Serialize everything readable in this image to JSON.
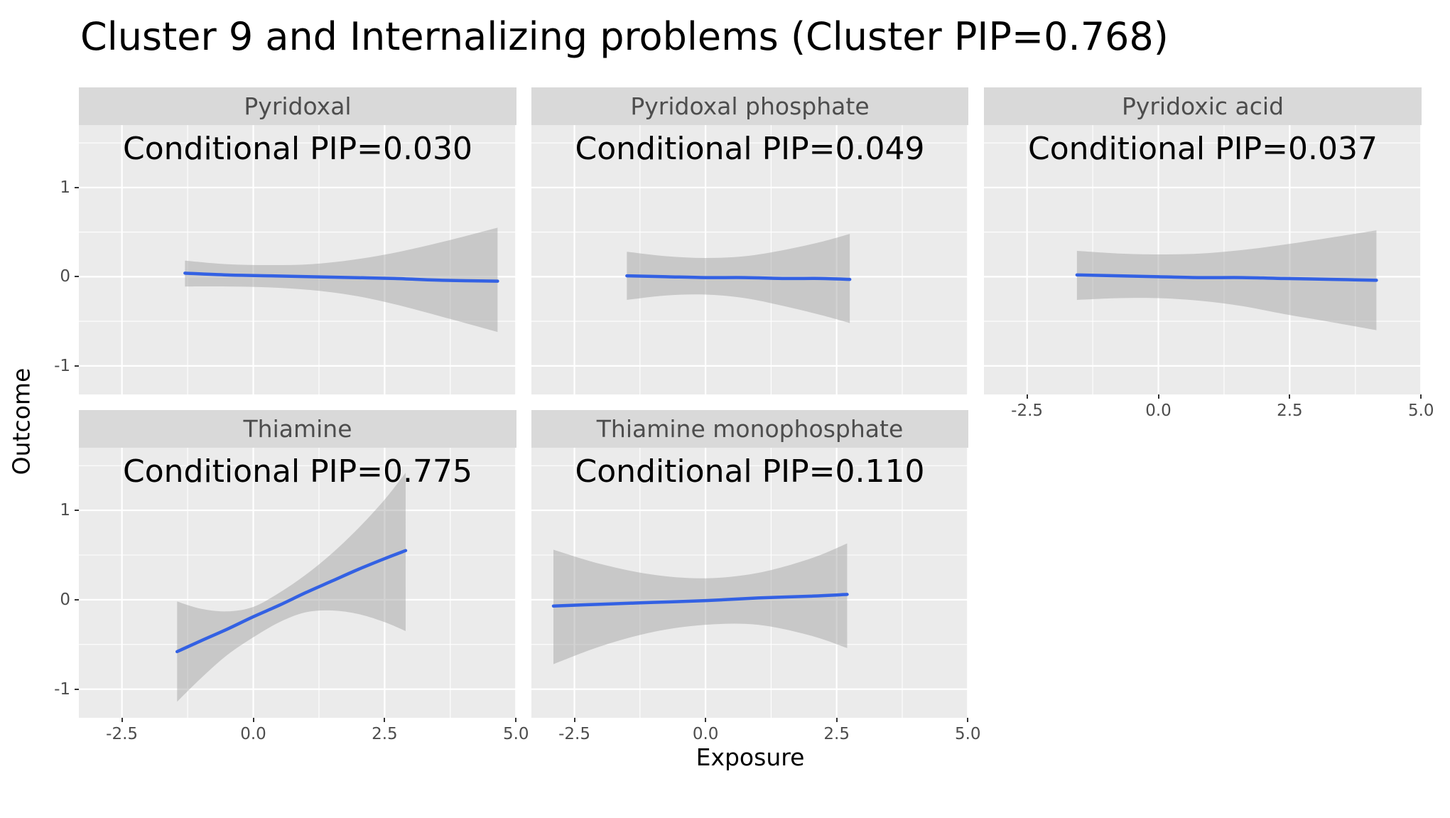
{
  "title": "Cluster 9 and Internalizing problems (Cluster PIP=0.768)",
  "axes": {
    "x_label": "Exposure",
    "y_label": "Outcome"
  },
  "chart_data": {
    "type": "line",
    "title": "Cluster 9 and Internalizing problems (Cluster PIP=0.768)",
    "xlabel": "Exposure",
    "ylabel": "Outcome",
    "xlim": [
      -3.32,
      5.01
    ],
    "ylim": [
      -1.32,
      1.7
    ],
    "x_ticks": {
      "values": [
        -2.5,
        0,
        2.5,
        5
      ],
      "labels": [
        "-2.5",
        "0.0",
        "2.5",
        "5.0"
      ]
    },
    "y_ticks": {
      "values": [
        -1,
        0,
        1
      ],
      "labels": [
        "-1",
        "0",
        "1"
      ]
    },
    "x_minor": [
      -1.25,
      1.25,
      3.75
    ],
    "y_minor": [
      -0.5,
      0.5,
      1.5
    ],
    "style": {
      "panel_bg": "#EBEBEB",
      "strip_bg": "#D9D9D9",
      "grid_color": "#FFFFFF",
      "line_color": "#3361E3",
      "ribbon_color": "#9E9E9E",
      "ribbon_opacity": 0.45
    },
    "panels": [
      {
        "name": "Pyridoxal",
        "pip_label": "Conditional PIP=0.030",
        "row": 0,
        "col": 0,
        "show_x_axis": false,
        "show_y_axis": true,
        "line": {
          "x": [
            -1.3,
            -0.5,
            0.3,
            1.1,
            1.9,
            2.7,
            3.6,
            4.65
          ],
          "y": [
            0.04,
            0.02,
            0.01,
            0.0,
            -0.01,
            -0.02,
            -0.04,
            -0.05
          ]
        },
        "ribbon": {
          "x": [
            -1.3,
            -0.5,
            0.3,
            1.1,
            1.9,
            2.7,
            3.6,
            4.65
          ],
          "upper": [
            0.18,
            0.14,
            0.13,
            0.14,
            0.19,
            0.27,
            0.39,
            0.55
          ],
          "lower": [
            -0.11,
            -0.11,
            -0.12,
            -0.15,
            -0.21,
            -0.31,
            -0.45,
            -0.62
          ]
        }
      },
      {
        "name": "Pyridoxal phosphate",
        "pip_label": "Conditional PIP=0.049",
        "row": 0,
        "col": 1,
        "show_x_axis": false,
        "show_y_axis": false,
        "line": {
          "x": [
            -1.5,
            -0.75,
            0.0,
            0.75,
            1.5,
            2.2,
            2.75
          ],
          "y": [
            0.01,
            0.0,
            -0.01,
            -0.01,
            -0.02,
            -0.02,
            -0.03
          ]
        },
        "ribbon": {
          "x": [
            -1.5,
            -0.75,
            0.0,
            0.75,
            1.5,
            2.2,
            2.75
          ],
          "upper": [
            0.28,
            0.23,
            0.21,
            0.23,
            0.3,
            0.39,
            0.48
          ],
          "lower": [
            -0.26,
            -0.21,
            -0.2,
            -0.24,
            -0.33,
            -0.43,
            -0.52
          ]
        }
      },
      {
        "name": "Pyridoxic acid",
        "pip_label": "Conditional PIP=0.037",
        "row": 0,
        "col": 2,
        "show_x_axis": true,
        "show_y_axis": false,
        "line": {
          "x": [
            -1.55,
            -0.75,
            0.0,
            0.8,
            1.6,
            2.4,
            3.3,
            4.15
          ],
          "y": [
            0.02,
            0.01,
            0.0,
            -0.01,
            -0.01,
            -0.02,
            -0.03,
            -0.04
          ]
        },
        "ribbon": {
          "x": [
            -1.55,
            -0.75,
            0.0,
            0.8,
            1.6,
            2.4,
            3.3,
            4.15
          ],
          "upper": [
            0.29,
            0.26,
            0.25,
            0.26,
            0.3,
            0.36,
            0.44,
            0.52
          ],
          "lower": [
            -0.26,
            -0.24,
            -0.24,
            -0.27,
            -0.33,
            -0.42,
            -0.51,
            -0.6
          ]
        }
      },
      {
        "name": "Thiamine",
        "pip_label": "Conditional PIP=0.775",
        "row": 1,
        "col": 0,
        "show_x_axis": true,
        "show_y_axis": true,
        "line": {
          "x": [
            -1.45,
            -1.0,
            -0.5,
            0.0,
            0.5,
            1.0,
            1.5,
            2.0,
            2.5,
            2.9
          ],
          "y": [
            -0.58,
            -0.46,
            -0.33,
            -0.19,
            -0.06,
            0.08,
            0.21,
            0.34,
            0.46,
            0.55
          ]
        },
        "ribbon": {
          "x": [
            -1.45,
            -1.0,
            -0.5,
            0.0,
            0.5,
            1.0,
            1.5,
            2.0,
            2.5,
            2.9
          ],
          "upper": [
            -0.02,
            -0.1,
            -0.13,
            -0.08,
            0.08,
            0.28,
            0.52,
            0.8,
            1.12,
            1.42
          ],
          "lower": [
            -1.14,
            -0.88,
            -0.62,
            -0.42,
            -0.25,
            -0.14,
            -0.12,
            -0.16,
            -0.25,
            -0.35
          ]
        }
      },
      {
        "name": "Thiamine monophosphate",
        "pip_label": "Conditional PIP=0.110",
        "row": 1,
        "col": 1,
        "show_x_axis": true,
        "show_y_axis": false,
        "line": {
          "x": [
            -2.9,
            -2.0,
            -1.0,
            0.0,
            1.0,
            2.0,
            2.7
          ],
          "y": [
            -0.07,
            -0.05,
            -0.03,
            -0.01,
            0.02,
            0.04,
            0.06
          ]
        },
        "ribbon": {
          "x": [
            -2.9,
            -2.0,
            -1.0,
            0.0,
            1.0,
            2.0,
            2.7
          ],
          "upper": [
            0.56,
            0.4,
            0.28,
            0.24,
            0.3,
            0.46,
            0.63
          ],
          "lower": [
            -0.72,
            -0.52,
            -0.36,
            -0.28,
            -0.28,
            -0.4,
            -0.54
          ]
        }
      }
    ]
  }
}
